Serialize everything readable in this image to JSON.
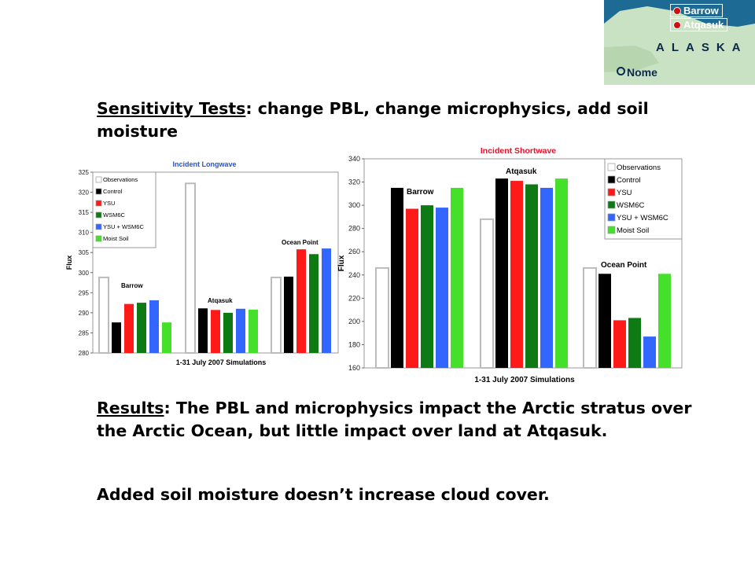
{
  "slide": {
    "sensitivity_label": "Sensitivity Tests",
    "sensitivity_text": ":  change PBL, change microphysics, add soil moisture",
    "results_label": "Results",
    "results_text": ":  The PBL and microphysics impact the Arctic stratus over the Arctic Ocean, but little impact over land at Atqasuk.",
    "added_text": "Added soil moisture doesn’t increase cloud cover."
  },
  "map": {
    "places": [
      "Barrow",
      "Atqasuk"
    ],
    "region": "ALASKA",
    "city": "Nome"
  },
  "colors": {
    "Observations": "#ffffff",
    "Control": "#000000",
    "YSU": "#ff1a1a",
    "WSM6C": "#0d7a14",
    "YSU + WSM6C": "#3366ff",
    "Moist Soil": "#44e02a"
  },
  "chart_data": [
    {
      "type": "bar",
      "title": "Incident Longwave",
      "ylabel": "Flux",
      "xlabel": "1-31 July 2007 Simulations",
      "ylim": [
        280,
        325
      ],
      "yticks": [
        280,
        285,
        290,
        295,
        300,
        305,
        310,
        315,
        320,
        325
      ],
      "legend": "top-left",
      "categories": [
        "Barrow",
        "Atqasuk",
        "Ocean Point"
      ],
      "series": [
        {
          "name": "Observations",
          "values": [
            298.8,
            322.2,
            298.8
          ]
        },
        {
          "name": "Control",
          "values": [
            287.6,
            291.1,
            299.0
          ]
        },
        {
          "name": "YSU",
          "values": [
            292.2,
            290.7,
            305.8
          ]
        },
        {
          "name": "WSM6C",
          "values": [
            292.5,
            290.0,
            304.6
          ]
        },
        {
          "name": "YSU + WSM6C",
          "values": [
            293.1,
            291.0,
            306.0
          ]
        },
        {
          "name": "Moist Soil",
          "values": [
            287.6,
            290.8,
            null
          ]
        }
      ]
    },
    {
      "type": "bar",
      "title": "Incident Shortwave",
      "ylabel": "Flux",
      "xlabel": "1-31 July 2007  Simulations",
      "ylim": [
        160,
        340
      ],
      "yticks": [
        160,
        180,
        200,
        220,
        240,
        260,
        280,
        300,
        320,
        340
      ],
      "legend": "top-right",
      "categories": [
        "Barrow",
        "Atqasuk",
        "Ocean Point"
      ],
      "series": [
        {
          "name": "Observations",
          "values": [
            246,
            288,
            246
          ]
        },
        {
          "name": "Control",
          "values": [
            315,
            323,
            241
          ]
        },
        {
          "name": "YSU",
          "values": [
            297,
            321,
            201
          ]
        },
        {
          "name": "WSM6C",
          "values": [
            300,
            318,
            203
          ]
        },
        {
          "name": "YSU + WSM6C",
          "values": [
            298,
            315,
            187
          ]
        },
        {
          "name": "Moist Soil",
          "values": [
            315,
            323,
            241
          ]
        }
      ]
    }
  ]
}
